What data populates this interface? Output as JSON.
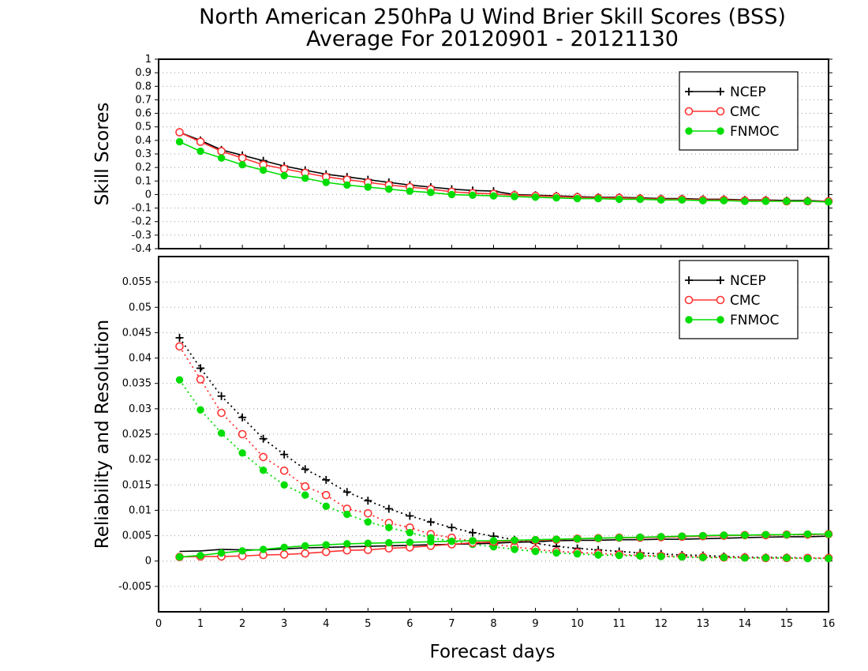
{
  "figure": {
    "title_line1": "North American 250hPa U Wind Brier Skill Scores (BSS)",
    "title_line2": "Average For 20120901 - 20121130",
    "xlabel": "Forecast days"
  },
  "chart_data": [
    {
      "type": "line",
      "ylabel": "Skill Scores",
      "xlim": [
        0,
        16
      ],
      "ylim": [
        -0.4,
        1
      ],
      "xticks": [
        0,
        1,
        2,
        3,
        4,
        5,
        6,
        7,
        8,
        9,
        10,
        11,
        12,
        13,
        14,
        15,
        16
      ],
      "yticks": [
        -0.4,
        -0.3,
        -0.2,
        -0.1,
        0,
        0.1,
        0.2,
        0.3,
        0.4,
        0.5,
        0.6,
        0.7,
        0.8,
        0.9,
        1
      ],
      "ytick_labels": [
        "-0.4",
        "-0.3",
        "-0.2",
        "-0.1",
        "0",
        "0.1",
        "0.2",
        "0.3",
        "0.4",
        "0.5",
        "0.6",
        "0.7",
        "0.8",
        "0.9",
        "1"
      ],
      "grid": "horizontal dotted",
      "legend": "top-right",
      "x": [
        0.5,
        1,
        1.5,
        2,
        2.5,
        3,
        3.5,
        4,
        4.5,
        5,
        5.5,
        6,
        6.5,
        7,
        7.5,
        8,
        8.5,
        9,
        9.5,
        10,
        10.5,
        11,
        11.5,
        12,
        12.5,
        13,
        13.5,
        14,
        14.5,
        15,
        15.5,
        16
      ],
      "series": [
        {
          "name": "NCEP",
          "color": "#000000",
          "marker": "plus",
          "style": "solid",
          "values": [
            0.46,
            0.4,
            0.33,
            0.29,
            0.25,
            0.21,
            0.18,
            0.15,
            0.13,
            0.11,
            0.09,
            0.07,
            0.055,
            0.04,
            0.03,
            0.025,
            0.0,
            -0.005,
            -0.01,
            -0.015,
            -0.02,
            -0.02,
            -0.025,
            -0.03,
            -0.03,
            -0.035,
            -0.035,
            -0.04,
            -0.04,
            -0.045,
            -0.045,
            -0.05
          ]
        },
        {
          "name": "CMC",
          "color": "#ff3333",
          "marker": "circle-open",
          "style": "solid",
          "values": [
            0.46,
            0.39,
            0.32,
            0.27,
            0.22,
            0.19,
            0.16,
            0.13,
            0.11,
            0.09,
            0.07,
            0.055,
            0.04,
            0.02,
            0.01,
            0.005,
            -0.005,
            -0.01,
            -0.015,
            -0.02,
            -0.025,
            -0.025,
            -0.03,
            -0.035,
            -0.035,
            -0.04,
            -0.04,
            -0.045,
            -0.045,
            -0.05,
            -0.05,
            -0.05
          ]
        },
        {
          "name": "FNMOC",
          "color": "#00dd00",
          "marker": "dot",
          "style": "solid",
          "values": [
            0.39,
            0.32,
            0.27,
            0.22,
            0.18,
            0.14,
            0.12,
            0.09,
            0.07,
            0.055,
            0.04,
            0.025,
            0.015,
            0.0,
            -0.005,
            -0.01,
            -0.015,
            -0.02,
            -0.025,
            -0.03,
            -0.03,
            -0.035,
            -0.035,
            -0.04,
            -0.04,
            -0.045,
            -0.045,
            -0.05,
            -0.05,
            -0.05,
            -0.05,
            -0.055
          ]
        }
      ]
    },
    {
      "type": "line",
      "ylabel": "Reliability and Resolution",
      "xlim": [
        0,
        16
      ],
      "ylim": [
        -0.01,
        0.06
      ],
      "xticks": [
        0,
        1,
        2,
        3,
        4,
        5,
        6,
        7,
        8,
        9,
        10,
        11,
        12,
        13,
        14,
        15,
        16
      ],
      "yticks": [
        -0.005,
        0,
        0.005,
        0.01,
        0.015,
        0.02,
        0.025,
        0.03,
        0.035,
        0.04,
        0.045,
        0.05,
        0.055
      ],
      "ytick_labels": [
        "-0.005",
        "0",
        "0.005",
        "0.01",
        "0.015",
        "0.02",
        "0.025",
        "0.03",
        "0.035",
        "0.04",
        "0.045",
        "0.05",
        "0.055"
      ],
      "grid": "horizontal dotted",
      "legend": "top-right",
      "x": [
        0.5,
        1,
        1.5,
        2,
        2.5,
        3,
        3.5,
        4,
        4.5,
        5,
        5.5,
        6,
        6.5,
        7,
        7.5,
        8,
        8.5,
        9,
        9.5,
        10,
        10.5,
        11,
        11.5,
        12,
        12.5,
        13,
        13.5,
        14,
        14.5,
        15,
        15.5,
        16
      ],
      "series": [
        {
          "name": "NCEP",
          "color": "#000000",
          "marker": "plus",
          "style": "dotted",
          "values": [
            0.044,
            0.038,
            0.0325,
            0.0283,
            0.0241,
            0.021,
            0.0181,
            0.016,
            0.0136,
            0.0119,
            0.0103,
            0.0089,
            0.0077,
            0.0066,
            0.0056,
            0.0049,
            0.0042,
            0.0035,
            0.0029,
            0.0025,
            0.0022,
            0.0019,
            0.0016,
            0.0014,
            0.0012,
            0.0011,
            0.0009,
            0.0008,
            0.0007,
            0.0007,
            0.0006,
            0.0006
          ]
        },
        {
          "name": "CMC",
          "color": "#ff3333",
          "marker": "circle-open",
          "style": "dotted",
          "values": [
            0.0423,
            0.0358,
            0.0292,
            0.025,
            0.0205,
            0.0178,
            0.0147,
            0.013,
            0.0103,
            0.0094,
            0.0075,
            0.0066,
            0.0053,
            0.0046,
            0.0039,
            0.0033,
            0.0028,
            0.0023,
            0.0019,
            0.0017,
            0.0015,
            0.0013,
            0.0011,
            0.001,
            0.0009,
            0.0008,
            0.0007,
            0.0007,
            0.0006,
            0.0006,
            0.0006,
            0.0006
          ]
        },
        {
          "name": "FNMOC",
          "color": "#00dd00",
          "marker": "dot",
          "style": "dotted",
          "values": [
            0.0357,
            0.0298,
            0.0252,
            0.0213,
            0.0179,
            0.015,
            0.013,
            0.0108,
            0.0092,
            0.0077,
            0.0066,
            0.0056,
            0.0046,
            0.0039,
            0.0033,
            0.0028,
            0.0023,
            0.0019,
            0.0016,
            0.0014,
            0.0012,
            0.0011,
            0.001,
            0.0009,
            0.0008,
            0.0007,
            0.0007,
            0.0006,
            0.0006,
            0.0006,
            0.0005,
            0.0005
          ]
        },
        {
          "name": "",
          "color": "#000000",
          "marker": "none",
          "style": "solid",
          "values": [
            0.0019,
            0.002,
            0.0023,
            0.0022,
            0.0022,
            0.0024,
            0.0026,
            0.0027,
            0.0028,
            0.0029,
            0.003,
            0.0031,
            0.0032,
            0.0033,
            0.0034,
            0.0035,
            0.0037,
            0.0038,
            0.004,
            0.0041,
            0.0041,
            0.0042,
            0.0042,
            0.0043,
            0.0043,
            0.0044,
            0.0045,
            0.0046,
            0.0047,
            0.0048,
            0.0048,
            0.0049
          ]
        },
        {
          "name": "",
          "color": "#ff3333",
          "marker": "circle-open",
          "style": "solid",
          "values": [
            0.0008,
            0.0009,
            0.0009,
            0.001,
            0.0012,
            0.0013,
            0.0015,
            0.0018,
            0.0021,
            0.0022,
            0.0025,
            0.0027,
            0.003,
            0.0033,
            0.0036,
            0.0038,
            0.004,
            0.0041,
            0.0042,
            0.0044,
            0.0045,
            0.0046,
            0.0046,
            0.0047,
            0.0048,
            0.0049,
            0.005,
            0.0051,
            0.0051,
            0.0052,
            0.0052,
            0.0053
          ]
        },
        {
          "name": "",
          "color": "#00dd00",
          "marker": "dot",
          "style": "solid",
          "values": [
            0.0008,
            0.0011,
            0.0016,
            0.002,
            0.0023,
            0.0027,
            0.003,
            0.0032,
            0.0034,
            0.0035,
            0.0036,
            0.0037,
            0.0038,
            0.0039,
            0.004,
            0.004,
            0.0041,
            0.0042,
            0.0043,
            0.0044,
            0.0045,
            0.0046,
            0.0047,
            0.0048,
            0.0049,
            0.005,
            0.0051,
            0.0051,
            0.0052,
            0.0052,
            0.0053,
            0.0053
          ]
        }
      ]
    }
  ]
}
